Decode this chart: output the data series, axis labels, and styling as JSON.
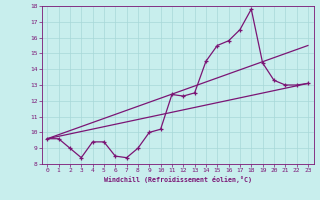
{
  "xlabel": "Windchill (Refroidissement éolien,°C)",
  "bg_color": "#c8eeed",
  "line_color": "#7b1575",
  "grid_color": "#a8d8d8",
  "xlim": [
    -0.5,
    23.5
  ],
  "ylim": [
    8,
    18
  ],
  "yticks": [
    8,
    9,
    10,
    11,
    12,
    13,
    14,
    15,
    16,
    17,
    18
  ],
  "xticks": [
    0,
    1,
    2,
    3,
    4,
    5,
    6,
    7,
    8,
    9,
    10,
    11,
    12,
    13,
    14,
    15,
    16,
    17,
    18,
    19,
    20,
    21,
    22,
    23
  ],
  "line1_x": [
    0,
    1,
    2,
    3,
    4,
    5,
    6,
    7,
    8,
    9,
    10,
    11,
    12,
    13,
    14,
    15,
    16,
    17,
    18,
    19,
    20,
    21,
    22,
    23
  ],
  "line1_y": [
    9.6,
    9.6,
    9.0,
    8.4,
    9.4,
    9.4,
    8.5,
    8.4,
    9.0,
    10.0,
    10.2,
    12.4,
    12.3,
    12.5,
    14.5,
    15.5,
    15.8,
    16.5,
    17.8,
    14.4,
    13.3,
    13.0,
    13.0,
    13.1
  ],
  "line2_x": [
    0,
    23
  ],
  "line2_y": [
    9.6,
    13.1
  ],
  "line3_x": [
    0,
    23
  ],
  "line3_y": [
    9.6,
    15.5
  ]
}
